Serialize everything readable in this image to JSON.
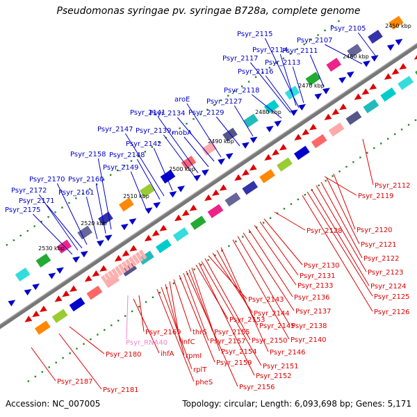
{
  "title": "Pseudomonas syringae pv. syringae B728a, complete genome",
  "accession": "Accession: NC_007005",
  "summary": "Topology: circular; Length: 6,093,698 bp; Genes: 5,171",
  "kbp_ticks": [
    "2450 kbp",
    "2460 kbp",
    "2470 kbp",
    "2480 kbp",
    "2490 kbp",
    "2500 kbp",
    "2510 kbp",
    "2520 kbp",
    "2530 kbp"
  ],
  "forward_genes": [
    "Psyr_2105",
    "Psyr_2107",
    "Psyr_2111",
    "Psyr_2113",
    "Psyr_2114",
    "Psyr_2115",
    "Psyr_2116",
    "Psyr_2117",
    "Psyr_2118",
    "Psyr_2127",
    "Psyr_2129",
    "aroE",
    "Psyr_2134",
    "Psyr_2141",
    "Psyr_2139",
    "Psyr_2147",
    "mobA",
    "Psyr_2142",
    "Psyr_2148",
    "Psyr_2158",
    "Psyr_2149",
    "Psyr_2160",
    "Psyr_2170",
    "Psyr_2161",
    "Psyr_2172",
    "Psyr_2171",
    "Psyr_2175"
  ],
  "reverse_genes": [
    "Psyr_2112",
    "Psyr_2119",
    "Psyr_2120",
    "Psyr_2121",
    "Psyr_2122",
    "Psyr_2123",
    "Psyr_2124",
    "Psyr_2125",
    "Psyr_2126",
    "Psyr_2128",
    "Psyr_2130",
    "Psyr_2131",
    "Psyr_2133",
    "Psyr_2136",
    "Psyr_2137",
    "Psyr_2138",
    "Psyr_2140",
    "Psyr_2143",
    "Psyr_2144",
    "Psyr_2145",
    "Psyr_2146",
    "Psyr_2150",
    "Psyr_2151",
    "Psyr_2152",
    "Psyr_2153",
    "Psyr_2154",
    "Psyr_2155",
    "Psyr_2156",
    "Psyr_2157",
    "Psyr_2159",
    "thrS",
    "infC",
    "rpmI",
    "rplT",
    "pheS",
    "Psyr_2169",
    "ihfA",
    "Psyr_2180",
    "Psyr_2181",
    "Psyr_2187"
  ],
  "rna_gene": "Psyr_RNA40",
  "colors": {
    "forward": "#0000cc",
    "reverse": "#dd0000",
    "rna": "#ee88cc",
    "backbone": "#777777",
    "tick": "#228822"
  }
}
